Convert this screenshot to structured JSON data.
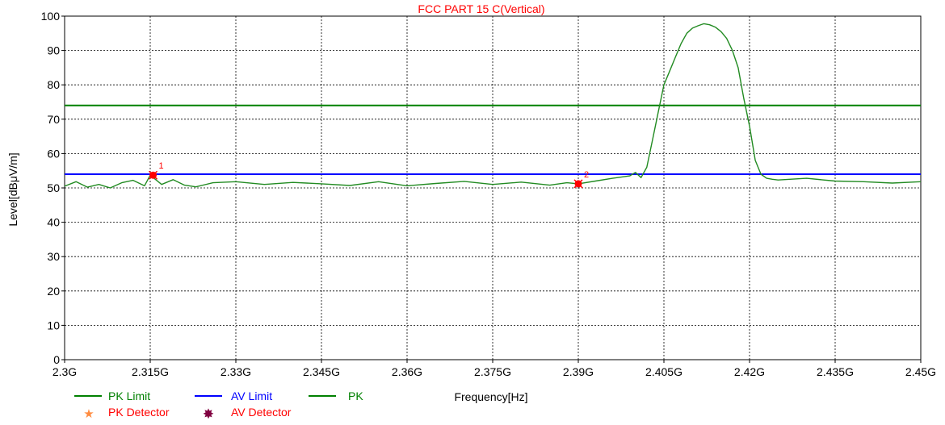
{
  "chart_data": {
    "type": "line",
    "title": "FCC PART 15 C(Vertical)",
    "xlabel": "Frequency[Hz]",
    "ylabel": "Level[dBμV/m]",
    "xlim": [
      2.3,
      2.45
    ],
    "ylim": [
      0,
      100
    ],
    "x_ticks": [
      2.3,
      2.315,
      2.33,
      2.345,
      2.36,
      2.375,
      2.39,
      2.405,
      2.42,
      2.435,
      2.45
    ],
    "x_tick_labels": [
      "2.3G",
      "2.315G",
      "2.33G",
      "2.345G",
      "2.36G",
      "2.375G",
      "2.39G",
      "2.405G",
      "2.42G",
      "2.435G",
      "2.45G"
    ],
    "y_ticks": [
      0,
      10,
      20,
      30,
      40,
      50,
      60,
      70,
      80,
      90,
      100
    ],
    "y_tick_labels": [
      "0",
      "10",
      "20",
      "30",
      "40",
      "50",
      "60",
      "70",
      "80",
      "90",
      "100"
    ],
    "grid": true,
    "limits": [
      {
        "name": "PK Limit",
        "value": 74,
        "color": "#008000"
      },
      {
        "name": "AV Limit",
        "value": 54,
        "color": "#0000ff"
      }
    ],
    "series": [
      {
        "name": "PK",
        "color": "#228b22",
        "x": [
          2.3,
          2.302,
          2.304,
          2.306,
          2.308,
          2.31,
          2.312,
          2.314,
          2.315,
          2.317,
          2.319,
          2.321,
          2.323,
          2.326,
          2.33,
          2.335,
          2.34,
          2.345,
          2.35,
          2.355,
          2.36,
          2.365,
          2.37,
          2.375,
          2.38,
          2.385,
          2.388,
          2.39,
          2.393,
          2.396,
          2.399,
          2.4,
          2.401,
          2.402,
          2.403,
          2.404,
          2.405,
          2.406,
          2.407,
          2.408,
          2.409,
          2.41,
          2.411,
          2.412,
          2.413,
          2.414,
          2.415,
          2.416,
          2.417,
          2.418,
          2.419,
          2.42,
          2.421,
          2.422,
          2.423,
          2.424,
          2.425,
          2.43,
          2.435,
          2.44,
          2.445,
          2.45
        ],
        "y": [
          50.5,
          51.8,
          50.2,
          51.0,
          50.0,
          51.5,
          52.2,
          50.6,
          53.7,
          51.0,
          52.4,
          50.8,
          50.3,
          51.5,
          51.8,
          51.0,
          51.6,
          51.2,
          50.7,
          51.8,
          50.6,
          51.3,
          51.9,
          51.0,
          51.7,
          50.8,
          51.5,
          51.2,
          52.0,
          52.8,
          53.5,
          54.5,
          53.0,
          56.0,
          64.0,
          72.0,
          80.0,
          84.0,
          88.0,
          92.0,
          95.0,
          96.5,
          97.2,
          97.8,
          97.5,
          96.8,
          95.5,
          93.5,
          90.0,
          85.0,
          76.0,
          68.0,
          58.0,
          54.0,
          52.8,
          52.5,
          52.3,
          52.8,
          52.0,
          51.8,
          51.4,
          51.8
        ]
      }
    ],
    "markers": [
      {
        "label": "1",
        "x": 2.3155,
        "y": 53.7
      },
      {
        "label": "2",
        "x": 2.39,
        "y": 51.2
      }
    ],
    "legend": {
      "placement": "bottom-left",
      "entries": [
        "PK Limit",
        "AV Limit",
        "PK",
        "PK Detector",
        "AV Detector"
      ],
      "pk_detector_color": "#ff8c40",
      "av_detector_color": "#800040"
    }
  }
}
